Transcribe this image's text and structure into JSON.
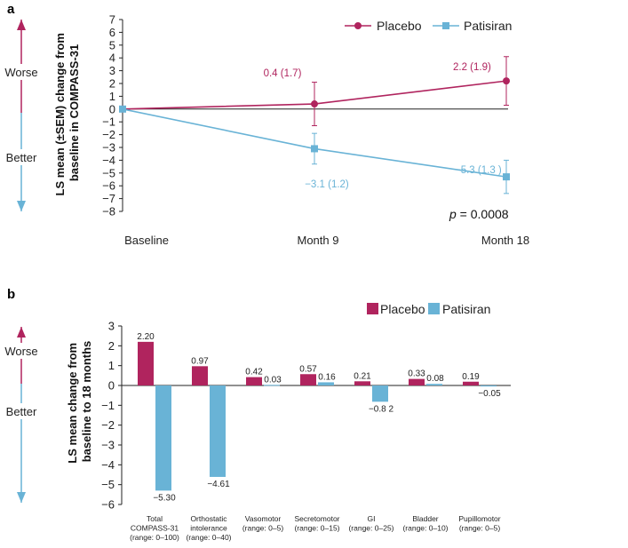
{
  "colors": {
    "placebo": "#B0245E",
    "patisiran": "#69B3D6",
    "axis": "#222222"
  },
  "chart_data": [
    {
      "panel": "a",
      "type": "line",
      "ylabel": "LS mean (±SEM) change from baseline in COMPASS-31",
      "ylim": [
        -8,
        7
      ],
      "yticks": [
        "7",
        "6",
        "5",
        "4",
        "3",
        "2",
        "1",
        "0",
        "−1",
        "−2",
        "−3",
        "−4",
        "−5",
        "−6",
        "−7",
        "−8"
      ],
      "categories": [
        "Baseline",
        "Month 9",
        "Month 18"
      ],
      "series": [
        {
          "name": "Placebo",
          "values": [
            0,
            0.4,
            2.2
          ],
          "sem": [
            0,
            1.7,
            1.9
          ],
          "labels": [
            "",
            "0.4 (1.7)",
            "2.2 (1.9)"
          ]
        },
        {
          "name": "Patisiran",
          "values": [
            0,
            -3.1,
            -5.3
          ],
          "sem": [
            0,
            1.2,
            1.3
          ],
          "labels": [
            "",
            "−3.1 (1.2)",
            "−5.3 (1.3 )"
          ]
        }
      ],
      "annotation": {
        "p_label": "p",
        "p_value": " = 0.0008"
      },
      "side_labels": {
        "worse": "Worse",
        "better": "Better"
      }
    },
    {
      "panel": "b",
      "type": "bar",
      "ylabel": "LS mean change from baseline to 18 months",
      "ylim": [
        -6,
        3
      ],
      "yticks": [
        "3",
        "2",
        "1",
        "0",
        "−1",
        "−2",
        "−3",
        "−4",
        "−5",
        "−6"
      ],
      "categories": [
        [
          "Total",
          "COMPASS-31",
          "(range: 0–100)"
        ],
        [
          "Orthostatic",
          "intolerance",
          "(range: 0–40)"
        ],
        [
          "Vasomotor",
          "(range: 0–5)"
        ],
        [
          "Secretomotor",
          "(range: 0–15)"
        ],
        [
          "GI",
          "(range: 0–25)"
        ],
        [
          "Bladder",
          "(range: 0–10)"
        ],
        [
          "Pupillomotor",
          "(range: 0–5)"
        ]
      ],
      "series": [
        {
          "name": "Placebo",
          "values": [
            2.2,
            0.97,
            0.42,
            0.57,
            0.21,
            0.33,
            0.19
          ],
          "labels": [
            "2.20",
            "0.97",
            "0.42",
            "0.57",
            "0.21",
            "0.33",
            "0.19"
          ]
        },
        {
          "name": "Patisiran",
          "values": [
            -5.3,
            -4.61,
            0.03,
            0.16,
            -0.82,
            0.08,
            -0.05
          ],
          "labels": [
            "−5.30",
            "−4.61",
            "0.03",
            "0.16",
            "−0.8 2",
            "0.08",
            "−0.05"
          ]
        }
      ],
      "side_labels": {
        "worse": "Worse",
        "better": "Better"
      }
    }
  ]
}
